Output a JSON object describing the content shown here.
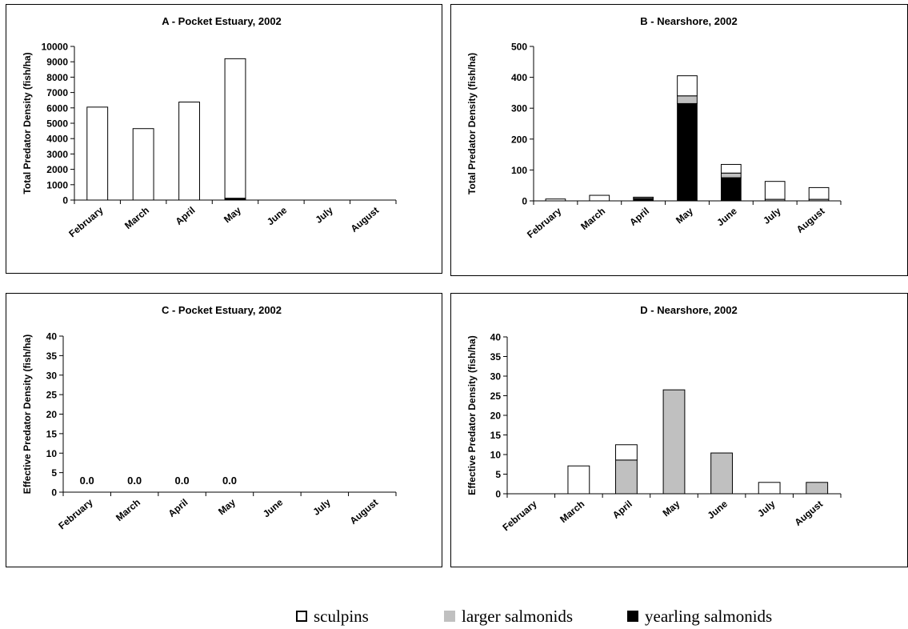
{
  "colors": {
    "sculpins": "#ffffff",
    "larger_salmonids": "#c0c0c0",
    "yearling_salmonids": "#000000",
    "axis": "#000000"
  },
  "legend": [
    {
      "key": "sculpins",
      "label": "sculpins"
    },
    {
      "key": "larger_salmonids",
      "label": "larger salmonids"
    },
    {
      "key": "yearling_salmonids",
      "label": "yearling salmonids"
    }
  ],
  "chart_data": [
    {
      "type": "bar",
      "stacked": true,
      "title": "A - Pocket Estuary, 2002",
      "ylabel": "Total Predator Density (fish/ha)",
      "xlabel": "",
      "ylim": [
        0,
        10000
      ],
      "yticks": [
        0,
        1000,
        2000,
        3000,
        4000,
        5000,
        6000,
        7000,
        8000,
        9000,
        10000
      ],
      "categories": [
        "February",
        "March",
        "April",
        "May",
        "June",
        "July",
        "August"
      ],
      "grid": false,
      "series": [
        {
          "key": "yearling_salmonids",
          "values": [
            0,
            0,
            0,
            120,
            null,
            null,
            null
          ]
        },
        {
          "key": "larger_salmonids",
          "values": [
            0,
            0,
            0,
            0,
            null,
            null,
            null
          ]
        },
        {
          "key": "sculpins",
          "values": [
            6050,
            4650,
            6380,
            9080,
            null,
            null,
            null
          ]
        }
      ],
      "data_labels": []
    },
    {
      "type": "bar",
      "stacked": true,
      "title": "B - Nearshore, 2002",
      "ylabel": "Total Predator Density (fish/ha)",
      "xlabel": "",
      "ylim": [
        0,
        500
      ],
      "yticks": [
        0,
        100,
        200,
        300,
        400,
        500
      ],
      "categories": [
        "February",
        "March",
        "April",
        "May",
        "June",
        "July",
        "August"
      ],
      "grid": false,
      "series": [
        {
          "key": "yearling_salmonids",
          "values": [
            0,
            0,
            8,
            315,
            75,
            0,
            0
          ]
        },
        {
          "key": "larger_salmonids",
          "values": [
            0,
            0,
            4,
            25,
            15,
            5,
            5
          ]
        },
        {
          "key": "sculpins",
          "values": [
            6,
            18,
            0,
            65,
            28,
            58,
            38
          ]
        }
      ],
      "data_labels": []
    },
    {
      "type": "bar",
      "stacked": true,
      "title": "C - Pocket Estuary, 2002",
      "ylabel": "Effective Predator Density (fish/ha)",
      "xlabel": "",
      "ylim": [
        0,
        40
      ],
      "yticks": [
        0,
        5,
        10,
        15,
        20,
        25,
        30,
        35,
        40
      ],
      "categories": [
        "February",
        "March",
        "April",
        "May",
        "June",
        "July",
        "August"
      ],
      "grid": false,
      "series": [
        {
          "key": "yearling_salmonids",
          "values": [
            0,
            0,
            0,
            0,
            null,
            null,
            null
          ]
        },
        {
          "key": "larger_salmonids",
          "values": [
            0,
            0,
            0,
            0,
            null,
            null,
            null
          ]
        },
        {
          "key": "sculpins",
          "values": [
            0,
            0,
            0,
            0,
            null,
            null,
            null
          ]
        }
      ],
      "data_labels": [
        "0.0",
        "0.0",
        "0.0",
        "0.0",
        "",
        "",
        ""
      ]
    },
    {
      "type": "bar",
      "stacked": true,
      "title": "D - Nearshore, 2002",
      "ylabel": "Effective Predator Density (fish/ha)",
      "xlabel": "",
      "ylim": [
        0,
        40
      ],
      "yticks": [
        0,
        5,
        10,
        15,
        20,
        25,
        30,
        35,
        40
      ],
      "categories": [
        "February",
        "March",
        "April",
        "May",
        "June",
        "July",
        "August"
      ],
      "grid": false,
      "series": [
        {
          "key": "yearling_salmonids",
          "values": [
            0,
            0,
            0,
            0,
            0,
            0,
            0
          ]
        },
        {
          "key": "larger_salmonids",
          "values": [
            0,
            0,
            8.6,
            26.5,
            10.4,
            0,
            2.9
          ]
        },
        {
          "key": "sculpins",
          "values": [
            0,
            7.1,
            3.9,
            0,
            0,
            2.9,
            0
          ]
        }
      ],
      "data_labels": []
    }
  ]
}
